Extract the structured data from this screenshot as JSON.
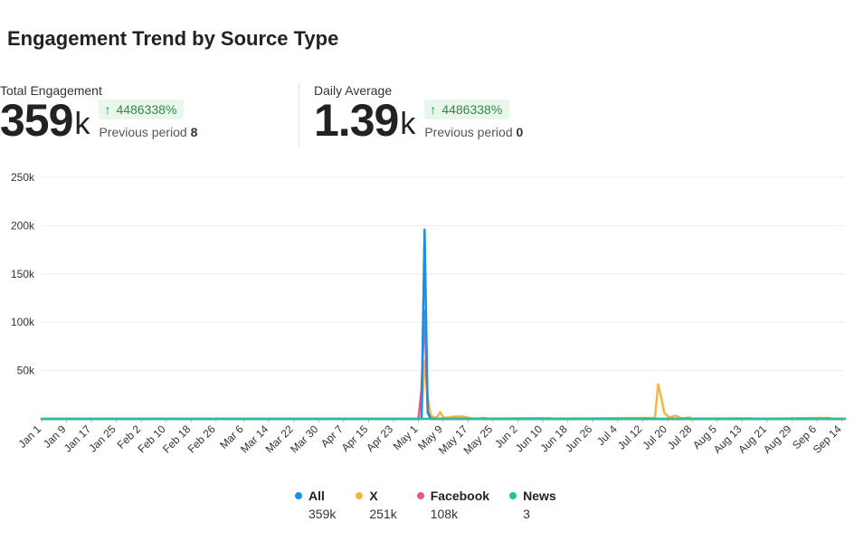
{
  "header": {
    "title": "Engagement Trend by Source Type"
  },
  "metrics": [
    {
      "label": "Total Engagement",
      "value": "359",
      "unit": "k",
      "change": "4486338%",
      "prev_label": "Previous period",
      "prev_value": "8"
    },
    {
      "label": "Daily Average",
      "value": "1.39",
      "unit": "k",
      "change": "4486338%",
      "prev_label": "Previous period",
      "prev_value": "0"
    }
  ],
  "colors": {
    "all": "#1a8fe3",
    "x": "#f4b446",
    "facebook": "#e8588a",
    "news": "#2bbf96",
    "grid": "#ececec",
    "axis": "#999999",
    "badge_text": "#2e8b47",
    "badge_bg": "#e8f6ec"
  },
  "legend": [
    {
      "name": "All",
      "total": "359k",
      "color": "#1a8fe3"
    },
    {
      "name": "X",
      "total": "251k",
      "color": "#f4b446"
    },
    {
      "name": "Facebook",
      "total": "108k",
      "color": "#e8588a"
    },
    {
      "name": "News",
      "total": "3",
      "color": "#2bbf96"
    }
  ],
  "chart_data": {
    "type": "line",
    "title": "",
    "xlabel": "",
    "ylabel": "",
    "ylim": [
      0,
      250000
    ],
    "y_ticks": [
      "50k",
      "100k",
      "150k",
      "200k",
      "250k"
    ],
    "y_tick_values": [
      50000,
      100000,
      150000,
      200000,
      250000
    ],
    "x_domain": [
      "2024-01-01",
      "2024-09-15"
    ],
    "x_ticks": [
      "Jan 1",
      "Jan 9",
      "Jan 17",
      "Jan 25",
      "Feb 2",
      "Feb 10",
      "Feb 18",
      "Feb 26",
      "Mar 6",
      "Mar 14",
      "Mar 22",
      "Mar 30",
      "Apr 7",
      "Apr 15",
      "Apr 23",
      "May 1",
      "May 9",
      "May 17",
      "May 25",
      "Jun 2",
      "Jun 10",
      "Jun 18",
      "Jun 26",
      "Jul 4",
      "Jul 12",
      "Jul 20",
      "Jul 28",
      "Aug 5",
      "Aug 13",
      "Aug 21",
      "Aug 29",
      "Sep 6",
      "Sep 14"
    ],
    "x_tick_dates": [
      "2024-01-01",
      "2024-01-09",
      "2024-01-17",
      "2024-01-25",
      "2024-02-02",
      "2024-02-10",
      "2024-02-18",
      "2024-02-26",
      "2024-03-06",
      "2024-03-14",
      "2024-03-22",
      "2024-03-30",
      "2024-04-07",
      "2024-04-15",
      "2024-04-23",
      "2024-05-01",
      "2024-05-09",
      "2024-05-17",
      "2024-05-25",
      "2024-06-02",
      "2024-06-10",
      "2024-06-18",
      "2024-06-26",
      "2024-07-04",
      "2024-07-12",
      "2024-07-20",
      "2024-07-28",
      "2024-08-05",
      "2024-08-13",
      "2024-08-21",
      "2024-08-29",
      "2024-09-06",
      "2024-09-14"
    ],
    "grid": true,
    "legend_position": "bottom",
    "series": [
      {
        "name": "X",
        "color": "#f4b446",
        "points": [
          [
            "2024-01-01",
            0
          ],
          [
            "2024-05-02",
            0
          ],
          [
            "2024-05-03",
            60000
          ],
          [
            "2024-05-04",
            22000
          ],
          [
            "2024-05-05",
            3000
          ],
          [
            "2024-05-06",
            1500
          ],
          [
            "2024-05-07",
            1500
          ],
          [
            "2024-05-08",
            7000
          ],
          [
            "2024-05-09",
            1500
          ],
          [
            "2024-05-10",
            1000
          ],
          [
            "2024-05-12",
            2000
          ],
          [
            "2024-05-14",
            2500
          ],
          [
            "2024-05-16",
            2000
          ],
          [
            "2024-05-18",
            500
          ],
          [
            "2024-05-20",
            300
          ],
          [
            "2024-05-22",
            1200
          ],
          [
            "2024-05-23",
            300
          ],
          [
            "2024-06-12",
            800
          ],
          [
            "2024-06-13",
            200
          ],
          [
            "2024-07-16",
            1000
          ],
          [
            "2024-07-17",
            36000
          ],
          [
            "2024-07-18",
            22000
          ],
          [
            "2024-07-19",
            6000
          ],
          [
            "2024-07-20",
            3000
          ],
          [
            "2024-07-21",
            1500
          ],
          [
            "2024-07-22",
            3000
          ],
          [
            "2024-07-23",
            3000
          ],
          [
            "2024-07-24",
            1000
          ],
          [
            "2024-07-25",
            500
          ],
          [
            "2024-07-27",
            1500
          ],
          [
            "2024-07-28",
            200
          ],
          [
            "2024-08-16",
            600
          ],
          [
            "2024-08-17",
            0
          ],
          [
            "2024-09-10",
            1000
          ],
          [
            "2024-09-11",
            0
          ],
          [
            "2024-09-15",
            0
          ]
        ]
      },
      {
        "name": "Facebook",
        "color": "#e8588a",
        "points": [
          [
            "2024-01-01",
            0
          ],
          [
            "2024-05-01",
            0
          ],
          [
            "2024-05-02",
            30000
          ],
          [
            "2024-05-03",
            112000
          ],
          [
            "2024-05-04",
            8000
          ],
          [
            "2024-05-05",
            0
          ],
          [
            "2024-09-15",
            0
          ]
        ]
      },
      {
        "name": "All",
        "color": "#1a8fe3",
        "points": [
          [
            "2024-01-01",
            0
          ],
          [
            "2024-05-02",
            0
          ],
          [
            "2024-05-03",
            196000
          ],
          [
            "2024-05-04",
            6000
          ],
          [
            "2024-05-05",
            0
          ],
          [
            "2024-09-15",
            0
          ]
        ]
      },
      {
        "name": "News",
        "color": "#2bbf96",
        "points": [
          [
            "2024-01-01",
            0
          ],
          [
            "2024-09-15",
            0
          ]
        ]
      }
    ]
  }
}
